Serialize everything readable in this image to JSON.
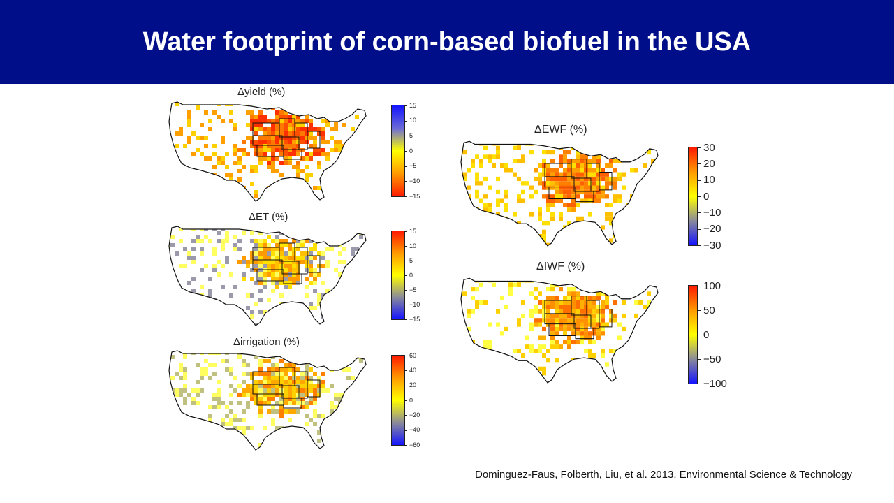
{
  "title": "Water footprint of corn-based biofuel in the USA",
  "citation": "Dominguez-Faus, Folberth, Liu, et al. 2013. Environmental Science & Technology",
  "colors": {
    "banner": "#000e8a",
    "negative": "#1414ff",
    "mid_grey": "#8a8a9a",
    "zero": "#ffff00",
    "mid_orange": "#ff9a00",
    "positive": "#ff1a00"
  },
  "panels": [
    {
      "id": "yield",
      "title": "Δyield (%)",
      "ticks": [
        "15",
        "10",
        "5",
        "0",
        "−10",
        "−5",
        "−15"
      ],
      "tick_values": [
        15,
        10,
        5,
        0,
        -5,
        -10,
        -15
      ],
      "tick_labels_ordered": [
        "15",
        "10",
        "5",
        "0",
        "−5",
        "−10",
        "−15"
      ],
      "scale": "red-low"
    },
    {
      "id": "et",
      "title": "ΔET (%)",
      "tick_labels_ordered": [
        "15",
        "10",
        "5",
        "0",
        "−5",
        "−10",
        "−15"
      ],
      "scale": "blue-low"
    },
    {
      "id": "irrigation",
      "title": "Δirrigation (%)",
      "tick_labels_ordered": [
        "60",
        "40",
        "20",
        "0",
        "−20",
        "−40",
        "−60"
      ],
      "scale": "blue-low"
    },
    {
      "id": "ewf",
      "title": "ΔEWF (%)",
      "tick_labels_ordered": [
        "30",
        "20",
        "10",
        "0",
        "−10",
        "−20",
        "−30"
      ],
      "scale": "blue-low"
    },
    {
      "id": "iwf",
      "title": "ΔIWF (%)",
      "tick_labels_ordered": [
        "100",
        "50",
        "0",
        "−50",
        "−100"
      ],
      "scale": "blue-low"
    }
  ]
}
